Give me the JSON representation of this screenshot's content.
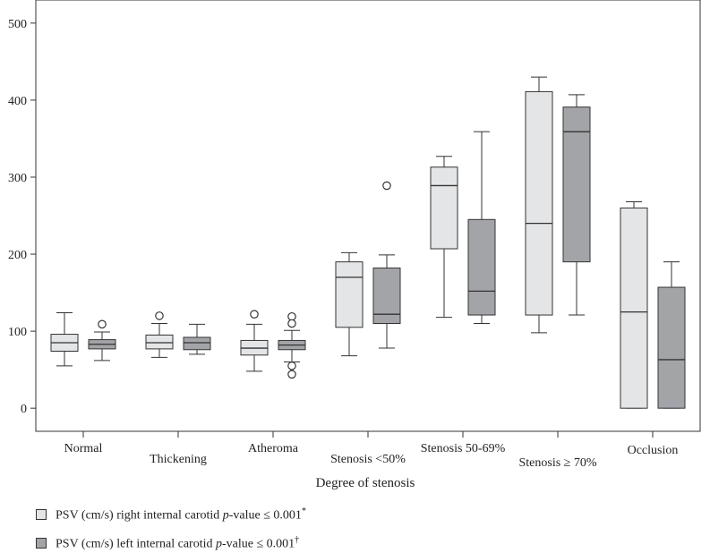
{
  "chart_data": {
    "type": "boxplot",
    "xlabel": "Degree of stenosis",
    "ylabel": "",
    "ylim": [
      -30,
      530
    ],
    "yticks": [
      0,
      100,
      200,
      300,
      400,
      500
    ],
    "categories": [
      "Normal",
      "Thickening",
      "Atheroma",
      "Stenosis <50%",
      "Stenosis 50-69%",
      "Stenosis ≥ 70%",
      "Occlusion"
    ],
    "series": [
      {
        "name": "right",
        "color": "#e4e5e7",
        "boxes": [
          {
            "min": 55,
            "q1": 74,
            "median": 85,
            "q3": 96,
            "max": 124,
            "outliers": []
          },
          {
            "min": 66,
            "q1": 77,
            "median": 85,
            "q3": 95,
            "max": 110,
            "outliers": [
              120
            ]
          },
          {
            "min": 48,
            "q1": 69,
            "median": 78,
            "q3": 88,
            "max": 109,
            "outliers": [
              122
            ]
          },
          {
            "min": 68,
            "q1": 105,
            "median": 170,
            "q3": 190,
            "max": 202,
            "outliers": []
          },
          {
            "min": 118,
            "q1": 207,
            "median": 289,
            "q3": 313,
            "max": 327,
            "outliers": []
          },
          {
            "min": 98,
            "q1": 121,
            "median": 240,
            "q3": 411,
            "max": 430,
            "outliers": []
          },
          {
            "min": 0,
            "q1": 0,
            "median": 125,
            "q3": 260,
            "max": 268,
            "outliers": []
          }
        ]
      },
      {
        "name": "left",
        "color": "#a3a4a8",
        "boxes": [
          {
            "min": 62,
            "q1": 77,
            "median": 83,
            "q3": 89,
            "max": 99,
            "outliers": [
              109
            ]
          },
          {
            "min": 70,
            "q1": 76,
            "median": 85,
            "q3": 92,
            "max": 109,
            "outliers": []
          },
          {
            "min": 60,
            "q1": 76,
            "median": 82,
            "q3": 88,
            "max": 101,
            "outliers": [
              119,
              110,
              55,
              44
            ]
          },
          {
            "min": 78,
            "q1": 110,
            "median": 122,
            "q3": 182,
            "max": 199,
            "outliers": [
              289
            ]
          },
          {
            "min": 110,
            "q1": 121,
            "median": 152,
            "q3": 245,
            "max": 359,
            "outliers": []
          },
          {
            "min": 121,
            "q1": 190,
            "median": 359,
            "q3": 391,
            "max": 407,
            "outliers": []
          },
          {
            "min": 0,
            "q1": 0,
            "median": 63,
            "q3": 157,
            "max": 190,
            "outliers": []
          }
        ]
      }
    ]
  },
  "legend": [
    {
      "prefix": "PSV (cm/s) right internal carotid ",
      "italic": "p",
      "suffix": "-value ≤ 0.001",
      "mark": "*",
      "color": "#e4e5e7"
    },
    {
      "prefix": "PSV (cm/s) left internal carotid ",
      "italic": "p",
      "suffix": "-value ≤ 0.001",
      "mark": "†",
      "color": "#a3a4a8"
    }
  ]
}
